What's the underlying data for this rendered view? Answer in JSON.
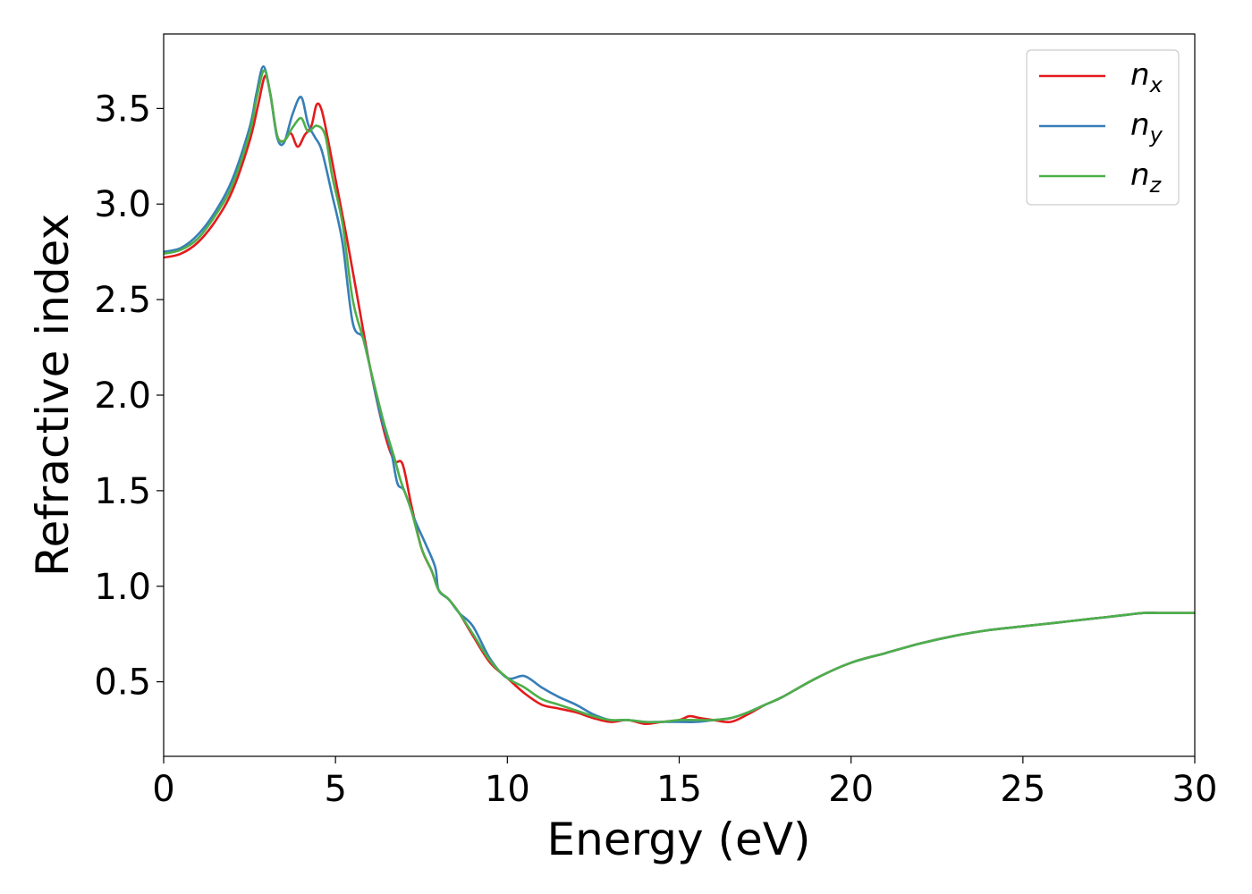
{
  "chart_data": {
    "type": "line",
    "xlabel": "Energy (eV)",
    "ylabel": "Refractive index",
    "xlim": [
      0,
      30
    ],
    "ylim": [
      0.11,
      3.89
    ],
    "xticks": [
      0,
      5,
      10,
      15,
      20,
      25,
      30
    ],
    "xtick_labels": [
      "0",
      "5",
      "10",
      "15",
      "20",
      "25",
      "30"
    ],
    "yticks": [
      0.5,
      1.0,
      1.5,
      2.0,
      2.5,
      3.0,
      3.5
    ],
    "ytick_labels": [
      "0.5",
      "1.0",
      "1.5",
      "2.0",
      "2.5",
      "3.0",
      "3.5"
    ],
    "grid": false,
    "legend_position": "top-right",
    "series": [
      {
        "name": "n_x",
        "label_main": "n",
        "label_sub": "x",
        "color": "#e41a1c",
        "x": [
          0,
          0.5,
          1.0,
          1.5,
          2.0,
          2.5,
          2.75,
          2.95,
          3.1,
          3.3,
          3.5,
          3.7,
          3.9,
          4.1,
          4.3,
          4.45,
          4.6,
          4.8,
          5.0,
          5.3,
          5.6,
          6.0,
          6.4,
          6.7,
          6.95,
          7.2,
          7.5,
          7.8,
          8.0,
          8.3,
          8.6,
          9.0,
          9.5,
          10.0,
          10.5,
          11.0,
          11.5,
          12.0,
          12.5,
          13.0,
          13.5,
          14.0,
          14.5,
          15.0,
          15.3,
          15.6,
          16.0,
          16.5,
          17.0,
          17.5,
          18.0,
          19.0,
          20.0,
          21.0,
          22.0,
          23.0,
          24.0,
          25.0,
          26.0,
          27.0,
          27.5,
          28.0,
          28.5,
          29.0,
          29.5,
          30.0
        ],
        "y": [
          2.72,
          2.74,
          2.8,
          2.91,
          3.07,
          3.33,
          3.52,
          3.67,
          3.58,
          3.36,
          3.33,
          3.37,
          3.3,
          3.36,
          3.41,
          3.52,
          3.49,
          3.32,
          3.13,
          2.85,
          2.55,
          2.15,
          1.82,
          1.66,
          1.64,
          1.43,
          1.2,
          1.08,
          0.98,
          0.93,
          0.86,
          0.74,
          0.6,
          0.52,
          0.44,
          0.38,
          0.36,
          0.34,
          0.31,
          0.29,
          0.3,
          0.28,
          0.29,
          0.3,
          0.32,
          0.31,
          0.3,
          0.29,
          0.33,
          0.38,
          0.42,
          0.52,
          0.6,
          0.65,
          0.7,
          0.74,
          0.77,
          0.79,
          0.81,
          0.83,
          0.84,
          0.85,
          0.86,
          0.86,
          0.86,
          0.86
        ]
      },
      {
        "name": "n_y",
        "label_main": "n",
        "label_sub": "y",
        "color": "#377eb8",
        "x": [
          0,
          0.5,
          1.0,
          1.5,
          2.0,
          2.5,
          2.7,
          2.9,
          3.1,
          3.3,
          3.5,
          3.75,
          4.0,
          4.2,
          4.4,
          4.6,
          4.9,
          5.2,
          5.5,
          5.8,
          6.0,
          6.3,
          6.6,
          6.8,
          7.0,
          7.3,
          7.6,
          7.9,
          8.0,
          8.3,
          8.6,
          9.0,
          9.5,
          10.0,
          10.5,
          11.0,
          11.5,
          12.0,
          12.5,
          13.0,
          13.5,
          14.0,
          14.5,
          15.0,
          15.5,
          16.0,
          16.5,
          17.0,
          17.5,
          18.0,
          19.0,
          20.0,
          21.0,
          22.0,
          23.0,
          24.0,
          25.0,
          26.0,
          27.0,
          27.5,
          28.0,
          28.5,
          29.0,
          29.5,
          30.0
        ],
        "y": [
          2.75,
          2.77,
          2.84,
          2.96,
          3.13,
          3.4,
          3.58,
          3.72,
          3.58,
          3.35,
          3.32,
          3.47,
          3.56,
          3.42,
          3.35,
          3.28,
          3.05,
          2.8,
          2.38,
          2.3,
          2.15,
          1.9,
          1.72,
          1.54,
          1.5,
          1.35,
          1.23,
          1.1,
          0.98,
          0.93,
          0.86,
          0.79,
          0.62,
          0.52,
          0.53,
          0.47,
          0.42,
          0.38,
          0.33,
          0.3,
          0.3,
          0.29,
          0.29,
          0.29,
          0.29,
          0.3,
          0.31,
          0.34,
          0.38,
          0.42,
          0.52,
          0.6,
          0.65,
          0.7,
          0.74,
          0.77,
          0.79,
          0.81,
          0.83,
          0.84,
          0.85,
          0.86,
          0.86,
          0.86,
          0.86
        ]
      },
      {
        "name": "n_z",
        "label_main": "n",
        "label_sub": "z",
        "color": "#4daf4a",
        "x": [
          0,
          0.5,
          1.0,
          1.5,
          2.0,
          2.5,
          2.7,
          2.92,
          3.1,
          3.3,
          3.5,
          3.75,
          4.0,
          4.2,
          4.45,
          4.7,
          4.9,
          5.2,
          5.5,
          5.8,
          6.0,
          6.4,
          6.7,
          6.9,
          7.2,
          7.5,
          7.8,
          8.0,
          8.3,
          8.6,
          9.0,
          9.5,
          10.0,
          10.5,
          11.0,
          11.5,
          12.0,
          12.5,
          13.0,
          13.5,
          14.0,
          14.5,
          15.0,
          15.5,
          16.0,
          16.5,
          17.0,
          17.5,
          18.0,
          19.0,
          20.0,
          21.0,
          22.0,
          23.0,
          24.0,
          25.0,
          26.0,
          27.0,
          27.5,
          28.0,
          28.5,
          29.0,
          29.5,
          30.0
        ],
        "y": [
          2.74,
          2.76,
          2.82,
          2.94,
          3.1,
          3.37,
          3.55,
          3.7,
          3.58,
          3.36,
          3.33,
          3.4,
          3.45,
          3.38,
          3.41,
          3.36,
          3.15,
          2.9,
          2.5,
          2.3,
          2.15,
          1.86,
          1.68,
          1.55,
          1.4,
          1.2,
          1.08,
          0.98,
          0.93,
          0.86,
          0.75,
          0.61,
          0.52,
          0.47,
          0.41,
          0.38,
          0.35,
          0.32,
          0.3,
          0.3,
          0.29,
          0.29,
          0.3,
          0.3,
          0.3,
          0.31,
          0.34,
          0.38,
          0.42,
          0.52,
          0.6,
          0.65,
          0.7,
          0.74,
          0.77,
          0.79,
          0.81,
          0.83,
          0.84,
          0.85,
          0.86,
          0.86,
          0.86,
          0.86
        ]
      }
    ]
  }
}
